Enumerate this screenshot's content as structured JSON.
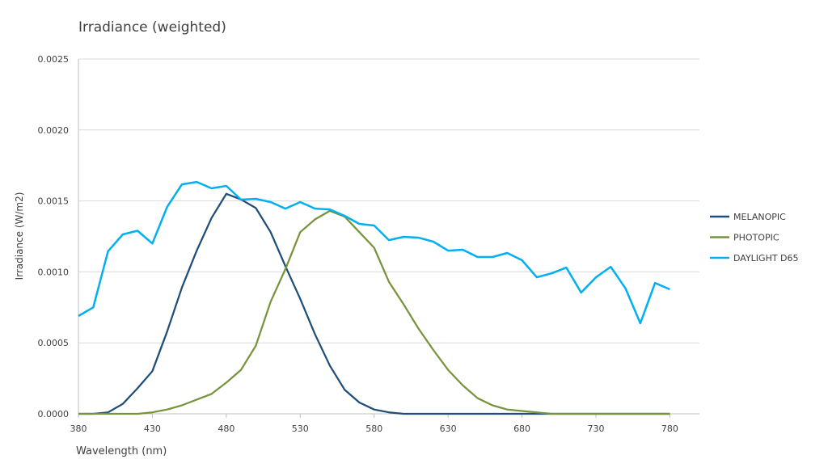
{
  "chart_data": {
    "type": "line",
    "title": "Irradiance (weighted)",
    "xlabel": "Wavelength (nm)",
    "ylabel": "Irradiance (W/m2)",
    "xlim": [
      380,
      800
    ],
    "ylim": [
      0,
      0.0025
    ],
    "xticks": [
      380,
      430,
      480,
      530,
      580,
      630,
      680,
      730,
      780
    ],
    "yticks": [
      "0.0000",
      "0.0005",
      "0.0010",
      "0.0015",
      "0.0020",
      "0.0025"
    ],
    "grid": "horizontal",
    "legend_position": "right",
    "x": [
      380,
      390,
      400,
      410,
      420,
      430,
      440,
      450,
      460,
      470,
      480,
      490,
      500,
      510,
      520,
      530,
      540,
      550,
      560,
      570,
      580,
      590,
      600,
      610,
      620,
      630,
      640,
      650,
      660,
      670,
      680,
      690,
      700,
      710,
      720,
      730,
      740,
      750,
      760,
      770,
      780
    ],
    "series": [
      {
        "name": "MELANOPIC",
        "color": "#1F4E79",
        "values": [
          0,
          0,
          1e-05,
          7e-05,
          0.00018,
          0.0003,
          0.00058,
          0.00089,
          0.00115,
          0.00138,
          0.00155,
          0.00151,
          0.00145,
          0.00128,
          0.00104,
          0.00081,
          0.00056,
          0.00034,
          0.00017,
          8e-05,
          3e-05,
          1e-05,
          0,
          0,
          0,
          0,
          0,
          0,
          0,
          0,
          0,
          0,
          0,
          0,
          0,
          0,
          0,
          0,
          0,
          0,
          0
        ]
      },
      {
        "name": "PHOTOPIC",
        "color": "#77933C",
        "values": [
          0,
          0,
          0,
          0,
          0,
          1e-05,
          3e-05,
          6e-05,
          0.0001,
          0.00014,
          0.00022,
          0.00031,
          0.00048,
          0.00079,
          0.00102,
          0.00128,
          0.00137,
          0.00143,
          0.00139,
          0.00128,
          0.00117,
          0.00093,
          0.00077,
          0.0006,
          0.00045,
          0.00031,
          0.0002,
          0.00011,
          6e-05,
          3e-05,
          2e-05,
          1e-05,
          0,
          0,
          0,
          0,
          0,
          0,
          0,
          0,
          0
        ]
      },
      {
        "name": "DAYLIGHT D65",
        "color": "#00B0F0",
        "values": [
          0.000689,
          0.00075,
          0.001145,
          0.001264,
          0.00129,
          0.0012,
          0.001458,
          0.001617,
          0.001634,
          0.001589,
          0.001606,
          0.001509,
          0.001515,
          0.001492,
          0.001446,
          0.001492,
          0.001446,
          0.00144,
          0.001395,
          0.001338,
          0.001327,
          0.001224,
          0.001247,
          0.001241,
          0.001213,
          0.00115,
          0.001156,
          0.001105,
          0.001105,
          0.001133,
          0.001082,
          0.000962,
          0.00099,
          0.00103,
          0.000854,
          0.000962,
          0.001036,
          0.000883,
          0.000638,
          0.000922,
          0.000877
        ]
      }
    ]
  }
}
